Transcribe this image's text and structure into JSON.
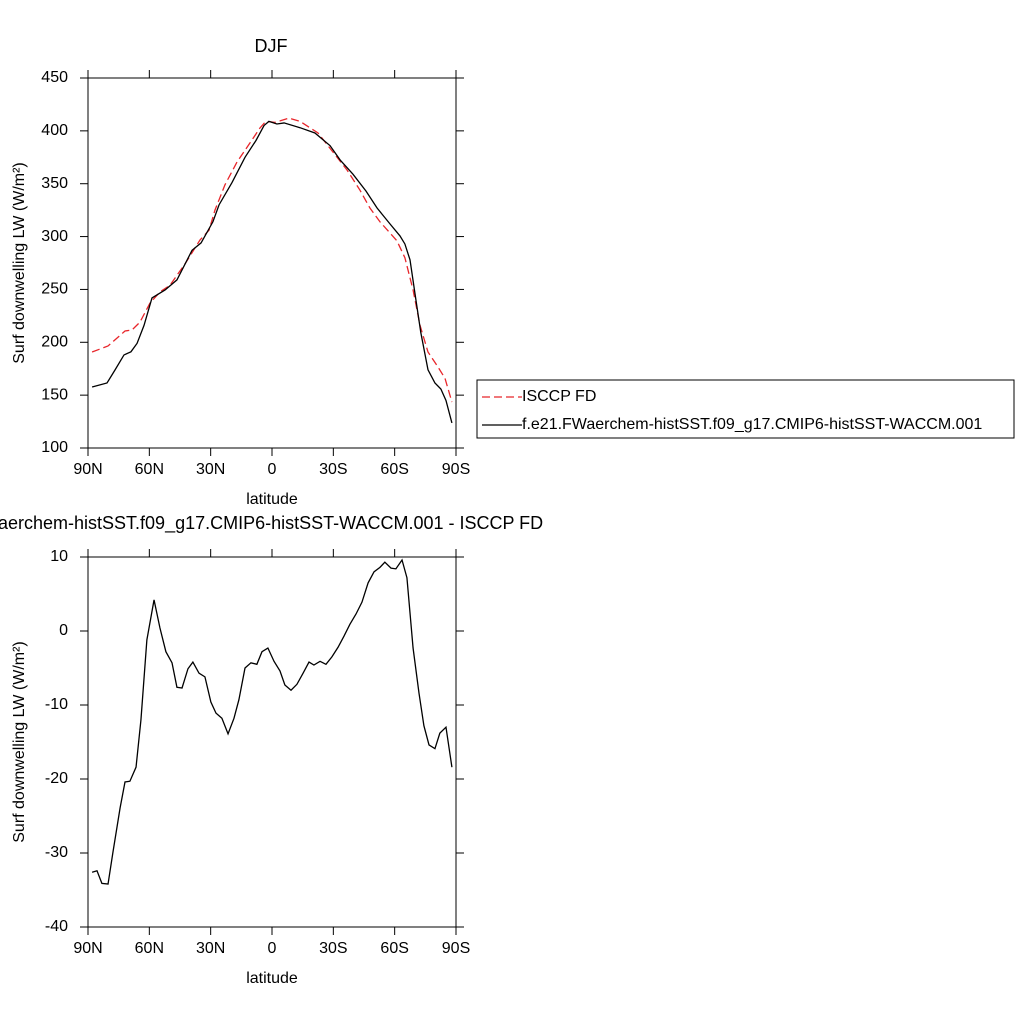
{
  "chart_data": [
    {
      "type": "line",
      "title": "DJF",
      "xlabel": "latitude",
      "ylabel": "Surf downwelling LW (W/m²)",
      "xlim": [
        90,
        -90
      ],
      "xticks": [
        {
          "value": 90,
          "label": "90N"
        },
        {
          "value": 60,
          "label": "60N"
        },
        {
          "value": 30,
          "label": "30N"
        },
        0,
        {
          "value": -30,
          "label": "30S"
        },
        {
          "value": -60,
          "label": "60S"
        },
        {
          "value": -90,
          "label": "90S"
        }
      ],
      "ylim": [
        100,
        450
      ],
      "yticks": [
        100,
        150,
        200,
        250,
        300,
        350,
        400,
        450
      ],
      "legend": "outside right",
      "series": [
        {
          "name": "ISCCP FD",
          "color": "#e8262b",
          "dash": true,
          "x": [
            88,
            80.2,
            71.9,
            68.5,
            64.6,
            59.7,
            54.8,
            49.9,
            42.6,
            35.2,
            30.8,
            27.9,
            23,
            17.1,
            10.8,
            5.9,
            3,
            -1.4,
            -8.3,
            -13.7,
            -22.5,
            -29.8,
            -36.7,
            -43,
            -47.9,
            -52.8,
            -61.1,
            -65,
            -69,
            -72.4,
            -76.3,
            -81.2,
            -84.6,
            -88
          ],
          "values": [
            190.8,
            196.5,
            210.7,
            211.6,
            219,
            237,
            247.6,
            254,
            274,
            296.8,
            306,
            325,
            349,
            370.6,
            388.5,
            402.7,
            409,
            408,
            412,
            409,
            398,
            380,
            363,
            344,
            327,
            314,
            296,
            280,
            249.5,
            216,
            190.8,
            176.6,
            166,
            143.5
          ]
        },
        {
          "name": "f.e21.FWaerchem-histSST.f09_g17.CMIP6-histSST-WACCM.001",
          "color": "#000000",
          "dash": false,
          "x": [
            88,
            80.7,
            76.8,
            72.4,
            69,
            66,
            62.6,
            58.7,
            52.3,
            46.5,
            39.1,
            34.7,
            28.9,
            25.9,
            19.6,
            13.2,
            7.8,
            3.9,
            1.5,
            -2.4,
            -5.9,
            -13.7,
            -21,
            -28.4,
            -33.3,
            -39.6,
            -46,
            -51.4,
            -57.7,
            -62.6,
            -65,
            -67.5,
            -70.4,
            -72.8,
            -76.3,
            -79.7,
            -82.6,
            -85.1,
            -88
          ],
          "values": [
            157.7,
            161.5,
            173.8,
            188,
            191,
            199,
            216,
            242,
            249.5,
            259,
            287,
            294,
            314,
            330,
            351,
            375,
            391,
            405,
            409,
            406.5,
            407.5,
            403,
            398,
            386,
            372.5,
            359,
            343,
            327,
            312,
            300.6,
            293,
            278,
            240,
            209,
            174,
            161.5,
            155.8,
            145,
            123.7
          ]
        }
      ]
    },
    {
      "type": "line",
      "title": "aerchem-histSST.f09_g17.CMIP6-histSST-WACCM.001 - ISCCP FD",
      "xlabel": "latitude",
      "ylabel": "Surf downwelling LW (W/m²)",
      "xlim": [
        90,
        -90
      ],
      "xticks": [
        {
          "value": 90,
          "label": "90N"
        },
        {
          "value": 60,
          "label": "60N"
        },
        {
          "value": 30,
          "label": "30N"
        },
        0,
        {
          "value": -30,
          "label": "30S"
        },
        {
          "value": -60,
          "label": "60S"
        },
        {
          "value": -90,
          "label": "90S"
        }
      ],
      "ylim": [
        -40,
        10
      ],
      "yticks": [
        -40,
        -30,
        -20,
        -10,
        0,
        10
      ],
      "series": [
        {
          "color": "#000000",
          "dash": false,
          "x": [
            88,
            85.6,
            83.2,
            80.2,
            77.8,
            74.3,
            71.9,
            69.5,
            66.5,
            64.1,
            61.2,
            57.7,
            54.8,
            51.9,
            48.9,
            46.5,
            44,
            41.1,
            38.7,
            35.7,
            32.8,
            29.9,
            27.4,
            24.5,
            21.5,
            18.6,
            16.2,
            13.2,
            10.3,
            7.4,
            4.9,
            2,
            -1,
            -3.9,
            -6.3,
            -9.3,
            -12.2,
            -15.2,
            -18.1,
            -20.5,
            -23.5,
            -26.4,
            -29.3,
            -32.3,
            -35.2,
            -38.1,
            -41.1,
            -44,
            -47,
            -49.9,
            -52.8,
            -55.2,
            -58.2,
            -60.6,
            -63.6,
            -66,
            -69,
            -71.9,
            -74.3,
            -76.8,
            -79.7,
            -82.1,
            -85.1,
            -88
          ],
          "values": [
            -32.6,
            -32.4,
            -34.1,
            -34.2,
            -29.9,
            -23.9,
            -20.4,
            -20.3,
            -18.4,
            -12,
            -1.2,
            4.2,
            0.4,
            -2.8,
            -4.3,
            -7.6,
            -7.7,
            -5.1,
            -4.2,
            -5.7,
            -6.2,
            -9.6,
            -11.1,
            -11.8,
            -13.9,
            -11.8,
            -9.3,
            -5,
            -4.3,
            -4.5,
            -2.8,
            -2.3,
            -4.1,
            -5.4,
            -7.3,
            -8,
            -7.2,
            -5.7,
            -4.2,
            -4.6,
            -4.1,
            -4.5,
            -3.5,
            -2.2,
            -0.7,
            0.9,
            2.3,
            3.9,
            6.5,
            8,
            8.6,
            9.3,
            8.5,
            8.4,
            9.6,
            7.2,
            -2.3,
            -8.4,
            -12.8,
            -15.4,
            -15.9,
            -13.8,
            -13,
            -18.4
          ]
        }
      ]
    }
  ]
}
